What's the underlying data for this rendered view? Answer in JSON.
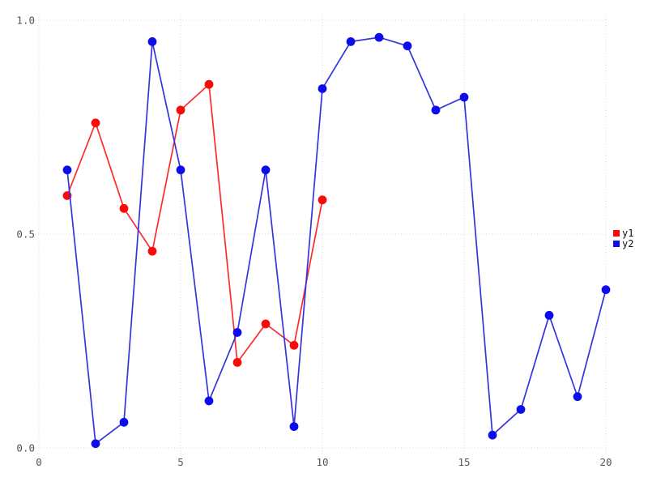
{
  "chart_data": {
    "type": "line",
    "title": "",
    "xlabel": "",
    "ylabel": "",
    "xlim": [
      0,
      20
    ],
    "ylim": [
      0.0,
      1.0
    ],
    "grid": "dotted",
    "grid_color": "#d6d6e0",
    "tick_label_color": "#55555c",
    "legend_position": "right-outside",
    "xticks": [
      0,
      5,
      10,
      15,
      20
    ],
    "xtick_labels": [
      "0",
      "5",
      "10",
      "15",
      "20"
    ],
    "yticks": [
      0.0,
      0.5,
      1.0
    ],
    "ytick_labels": [
      "0.0",
      "0.5",
      "1.0"
    ],
    "series": [
      {
        "name": "y1",
        "marker_color": "#fb0a0a",
        "line_color": "#fd2b2b",
        "x": [
          1,
          2,
          3,
          4,
          5,
          6,
          7,
          8,
          9,
          10
        ],
        "values": [
          0.59,
          0.76,
          0.56,
          0.46,
          0.79,
          0.85,
          0.2,
          0.29,
          0.24,
          0.58
        ]
      },
      {
        "name": "y2",
        "marker_color": "#0d0dec",
        "line_color": "#3434dc",
        "x": [
          1,
          2,
          3,
          4,
          5,
          6,
          7,
          8,
          9,
          10,
          11,
          12,
          13,
          14,
          15,
          16,
          17,
          18,
          19,
          20
        ],
        "values": [
          0.65,
          0.01,
          0.06,
          0.95,
          0.65,
          0.11,
          0.27,
          0.65,
          0.05,
          0.84,
          0.95,
          0.96,
          0.94,
          0.79,
          0.82,
          0.03,
          0.09,
          0.31,
          0.12,
          0.37
        ]
      }
    ]
  },
  "legend": {
    "items": [
      {
        "label": "y1",
        "color": "#fb0a0a"
      },
      {
        "label": "y2",
        "color": "#0d0dec"
      }
    ]
  }
}
